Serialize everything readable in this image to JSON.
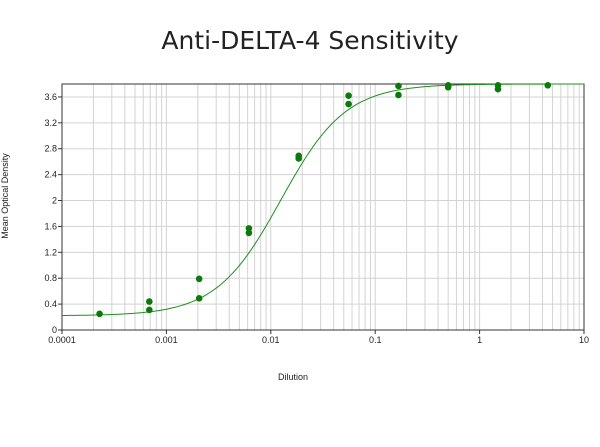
{
  "chart_data": {
    "type": "scatter",
    "title": "Anti-DELTA-4 Sensitivity",
    "xlabel": "Dilution",
    "ylabel": "Mean Optical Density",
    "xscale": "log",
    "xlim": [
      0.0001,
      10
    ],
    "ylim": [
      0,
      3.8
    ],
    "grid": true,
    "x_tick_labels": [
      "0.0001",
      "0.001",
      "0.01",
      "0.1",
      "1",
      "10"
    ],
    "y_tick_labels": [
      "0",
      "0.4",
      "0.8",
      "1.2",
      "1.6",
      "2",
      "2.4",
      "2.8",
      "3.2",
      "3.6"
    ],
    "colors": {
      "points": "#0a7a0a",
      "curve": "#1f8f1f",
      "grid": "#d3d3d3",
      "frame": "#333333"
    },
    "series": [
      {
        "points": [
          {
            "x": 0.000229,
            "y": 0.25
          },
          {
            "x": 0.000686,
            "y": 0.44
          },
          {
            "x": 0.000686,
            "y": 0.31
          },
          {
            "x": 0.00206,
            "y": 0.79
          },
          {
            "x": 0.00206,
            "y": 0.49
          },
          {
            "x": 0.00617,
            "y": 1.57
          },
          {
            "x": 0.00617,
            "y": 1.5
          },
          {
            "x": 0.0185,
            "y": 2.69
          },
          {
            "x": 0.0185,
            "y": 2.65
          },
          {
            "x": 0.0556,
            "y": 3.62
          },
          {
            "x": 0.0556,
            "y": 3.49
          },
          {
            "x": 0.167,
            "y": 3.77
          },
          {
            "x": 0.167,
            "y": 3.63
          },
          {
            "x": 0.5,
            "y": 3.78
          },
          {
            "x": 0.5,
            "y": 3.75
          },
          {
            "x": 1.5,
            "y": 3.78
          },
          {
            "x": 1.5,
            "y": 3.72
          },
          {
            "x": 4.5,
            "y": 3.78
          }
        ]
      }
    ],
    "fit": {
      "model": "4PL",
      "bottom": 0.22,
      "top": 3.8,
      "ec50": 0.0125,
      "hill": 1.4
    }
  }
}
